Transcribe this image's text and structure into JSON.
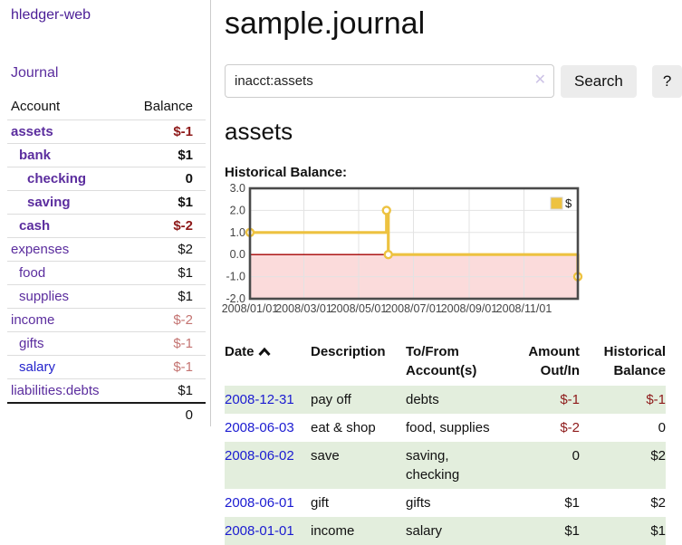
{
  "app_title": "hledger-web",
  "nav": {
    "journal": "Journal"
  },
  "sidebar": {
    "header": {
      "account": "Account",
      "balance": "Balance"
    },
    "accounts": [
      {
        "name": "assets",
        "indent": 1,
        "balance": "$-1",
        "bold": true,
        "neg": "strong",
        "blue": false
      },
      {
        "name": "bank",
        "indent": 2,
        "balance": "$1",
        "bold": true,
        "neg": null,
        "blue": false
      },
      {
        "name": "checking",
        "indent": 3,
        "balance": "0",
        "bold": true,
        "neg": null,
        "blue": false
      },
      {
        "name": "saving",
        "indent": 3,
        "balance": "$1",
        "bold": true,
        "neg": null,
        "blue": false
      },
      {
        "name": "cash",
        "indent": 2,
        "balance": "$-2",
        "bold": true,
        "neg": "strong",
        "blue": false
      },
      {
        "name": "expenses",
        "indent": 1,
        "balance": "$2",
        "bold": false,
        "neg": null,
        "blue": false
      },
      {
        "name": "food",
        "indent": 2,
        "balance": "$1",
        "bold": false,
        "neg": null,
        "blue": false
      },
      {
        "name": "supplies",
        "indent": 2,
        "balance": "$1",
        "bold": false,
        "neg": null,
        "blue": false
      },
      {
        "name": "income",
        "indent": 1,
        "balance": "$-2",
        "bold": false,
        "neg": "soft",
        "blue": false
      },
      {
        "name": "gifts",
        "indent": 2,
        "balance": "$-1",
        "bold": false,
        "neg": "soft",
        "blue": false
      },
      {
        "name": "salary",
        "indent": 2,
        "balance": "$-1",
        "bold": false,
        "neg": "soft",
        "blue": true
      },
      {
        "name": "liabilities:debts",
        "indent": 1,
        "balance": "$1",
        "bold": false,
        "neg": null,
        "blue": false
      }
    ],
    "total": "0"
  },
  "header": {
    "title": "sample.journal"
  },
  "search": {
    "value": "inacct:assets",
    "clear": "✕",
    "submit": "Search",
    "help": "?"
  },
  "account_page": {
    "title": "assets",
    "chart_title": "Historical Balance:"
  },
  "chart_data": {
    "type": "line",
    "step": true,
    "title": "Historical Balance",
    "x_range": [
      "2008-01-01",
      "2008-12-31"
    ],
    "x_ticks": [
      "2008/01/01",
      "2008/03/01",
      "2008/05/01",
      "2008/07/01",
      "2008/09/01",
      "2008/11/01"
    ],
    "y_ticks": [
      -2.0,
      -1.0,
      0.0,
      1.0,
      2.0,
      3.0
    ],
    "ylim": [
      -2,
      3
    ],
    "grid": true,
    "legend": {
      "label": "$",
      "position": "top-right"
    },
    "series": [
      {
        "name": "$",
        "color": "#edc240",
        "points": [
          [
            "2008-01-01",
            1.0
          ],
          [
            "2008-06-01",
            2.0
          ],
          [
            "2008-06-03",
            0.0
          ],
          [
            "2008-12-31",
            -1.0
          ]
        ]
      }
    ],
    "negative_region_color": "#fbdbdb",
    "zero_line_color": "#a40000",
    "grid_color": "#e3e3e3",
    "border_color": "#4a4a4a",
    "tick_label_color": "#444444"
  },
  "register": {
    "headers": {
      "date": "Date",
      "description": "Description",
      "account": "To/From\nAccount(s)",
      "amount": "Amount\nOut/In",
      "balance": "Historical\nBalance"
    },
    "rows": [
      {
        "date": "2008-12-31",
        "description": "pay off",
        "account": "debts",
        "amount": "$-1",
        "balance": "$-1",
        "amount_neg": true,
        "balance_neg": true
      },
      {
        "date": "2008-06-03",
        "description": "eat & shop",
        "account": "food, supplies",
        "amount": "$-2",
        "balance": "0",
        "amount_neg": true,
        "balance_neg": false
      },
      {
        "date": "2008-06-02",
        "description": "save",
        "account": "saving, checking",
        "amount": "0",
        "balance": "$2",
        "amount_neg": false,
        "balance_neg": false
      },
      {
        "date": "2008-06-01",
        "description": "gift",
        "account": "gifts",
        "amount": "$1",
        "balance": "$2",
        "amount_neg": false,
        "balance_neg": false
      },
      {
        "date": "2008-01-01",
        "description": "income",
        "account": "salary",
        "amount": "$1",
        "balance": "$1",
        "amount_neg": false,
        "balance_neg": false
      }
    ]
  },
  "colors": {
    "link_purple": "#5b2d9e",
    "link_blue": "#2323cc",
    "date_link_blue": "#1b1bd1",
    "negative_strong": "#8e1a1a",
    "negative_soft": "#c47472",
    "row_green": "#e3eedd",
    "series_gold": "#edc240"
  }
}
